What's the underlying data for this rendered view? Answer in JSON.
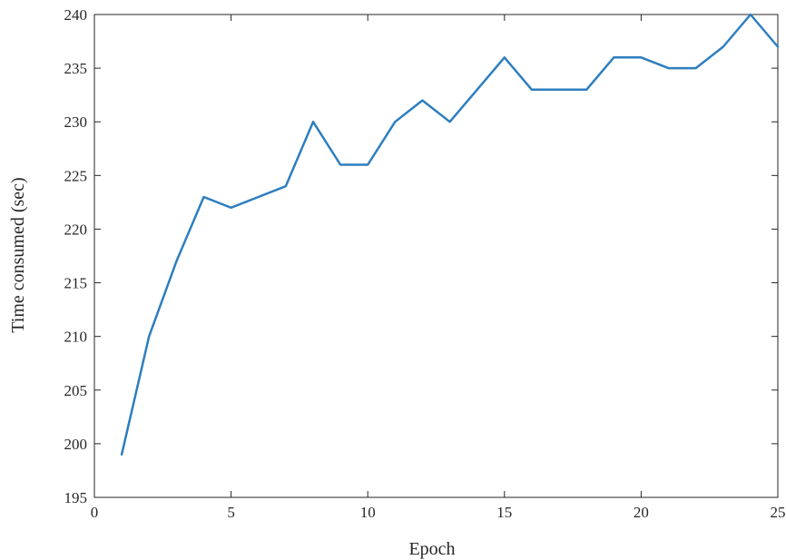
{
  "chart_data": {
    "type": "line",
    "title": "",
    "xlabel": "Epoch",
    "ylabel": "Time consumed (sec)",
    "xlim": [
      0,
      25
    ],
    "ylim": [
      195,
      240
    ],
    "xticks": [
      0,
      5,
      10,
      15,
      20,
      25
    ],
    "yticks": [
      195,
      200,
      205,
      210,
      215,
      220,
      225,
      230,
      235,
      240
    ],
    "grid": false,
    "series": [
      {
        "color": "#2e7ebf",
        "x": [
          1,
          2,
          3,
          4,
          5,
          6,
          7,
          8,
          9,
          10,
          11,
          12,
          13,
          14,
          15,
          16,
          17,
          18,
          19,
          20,
          21,
          22,
          23,
          24,
          25
        ],
        "y": [
          199,
          210,
          217,
          223,
          222,
          223,
          224,
          230,
          226,
          226,
          230,
          232,
          230,
          233,
          236,
          233,
          233,
          233,
          236,
          236,
          235,
          235,
          237,
          240,
          237
        ]
      }
    ]
  }
}
